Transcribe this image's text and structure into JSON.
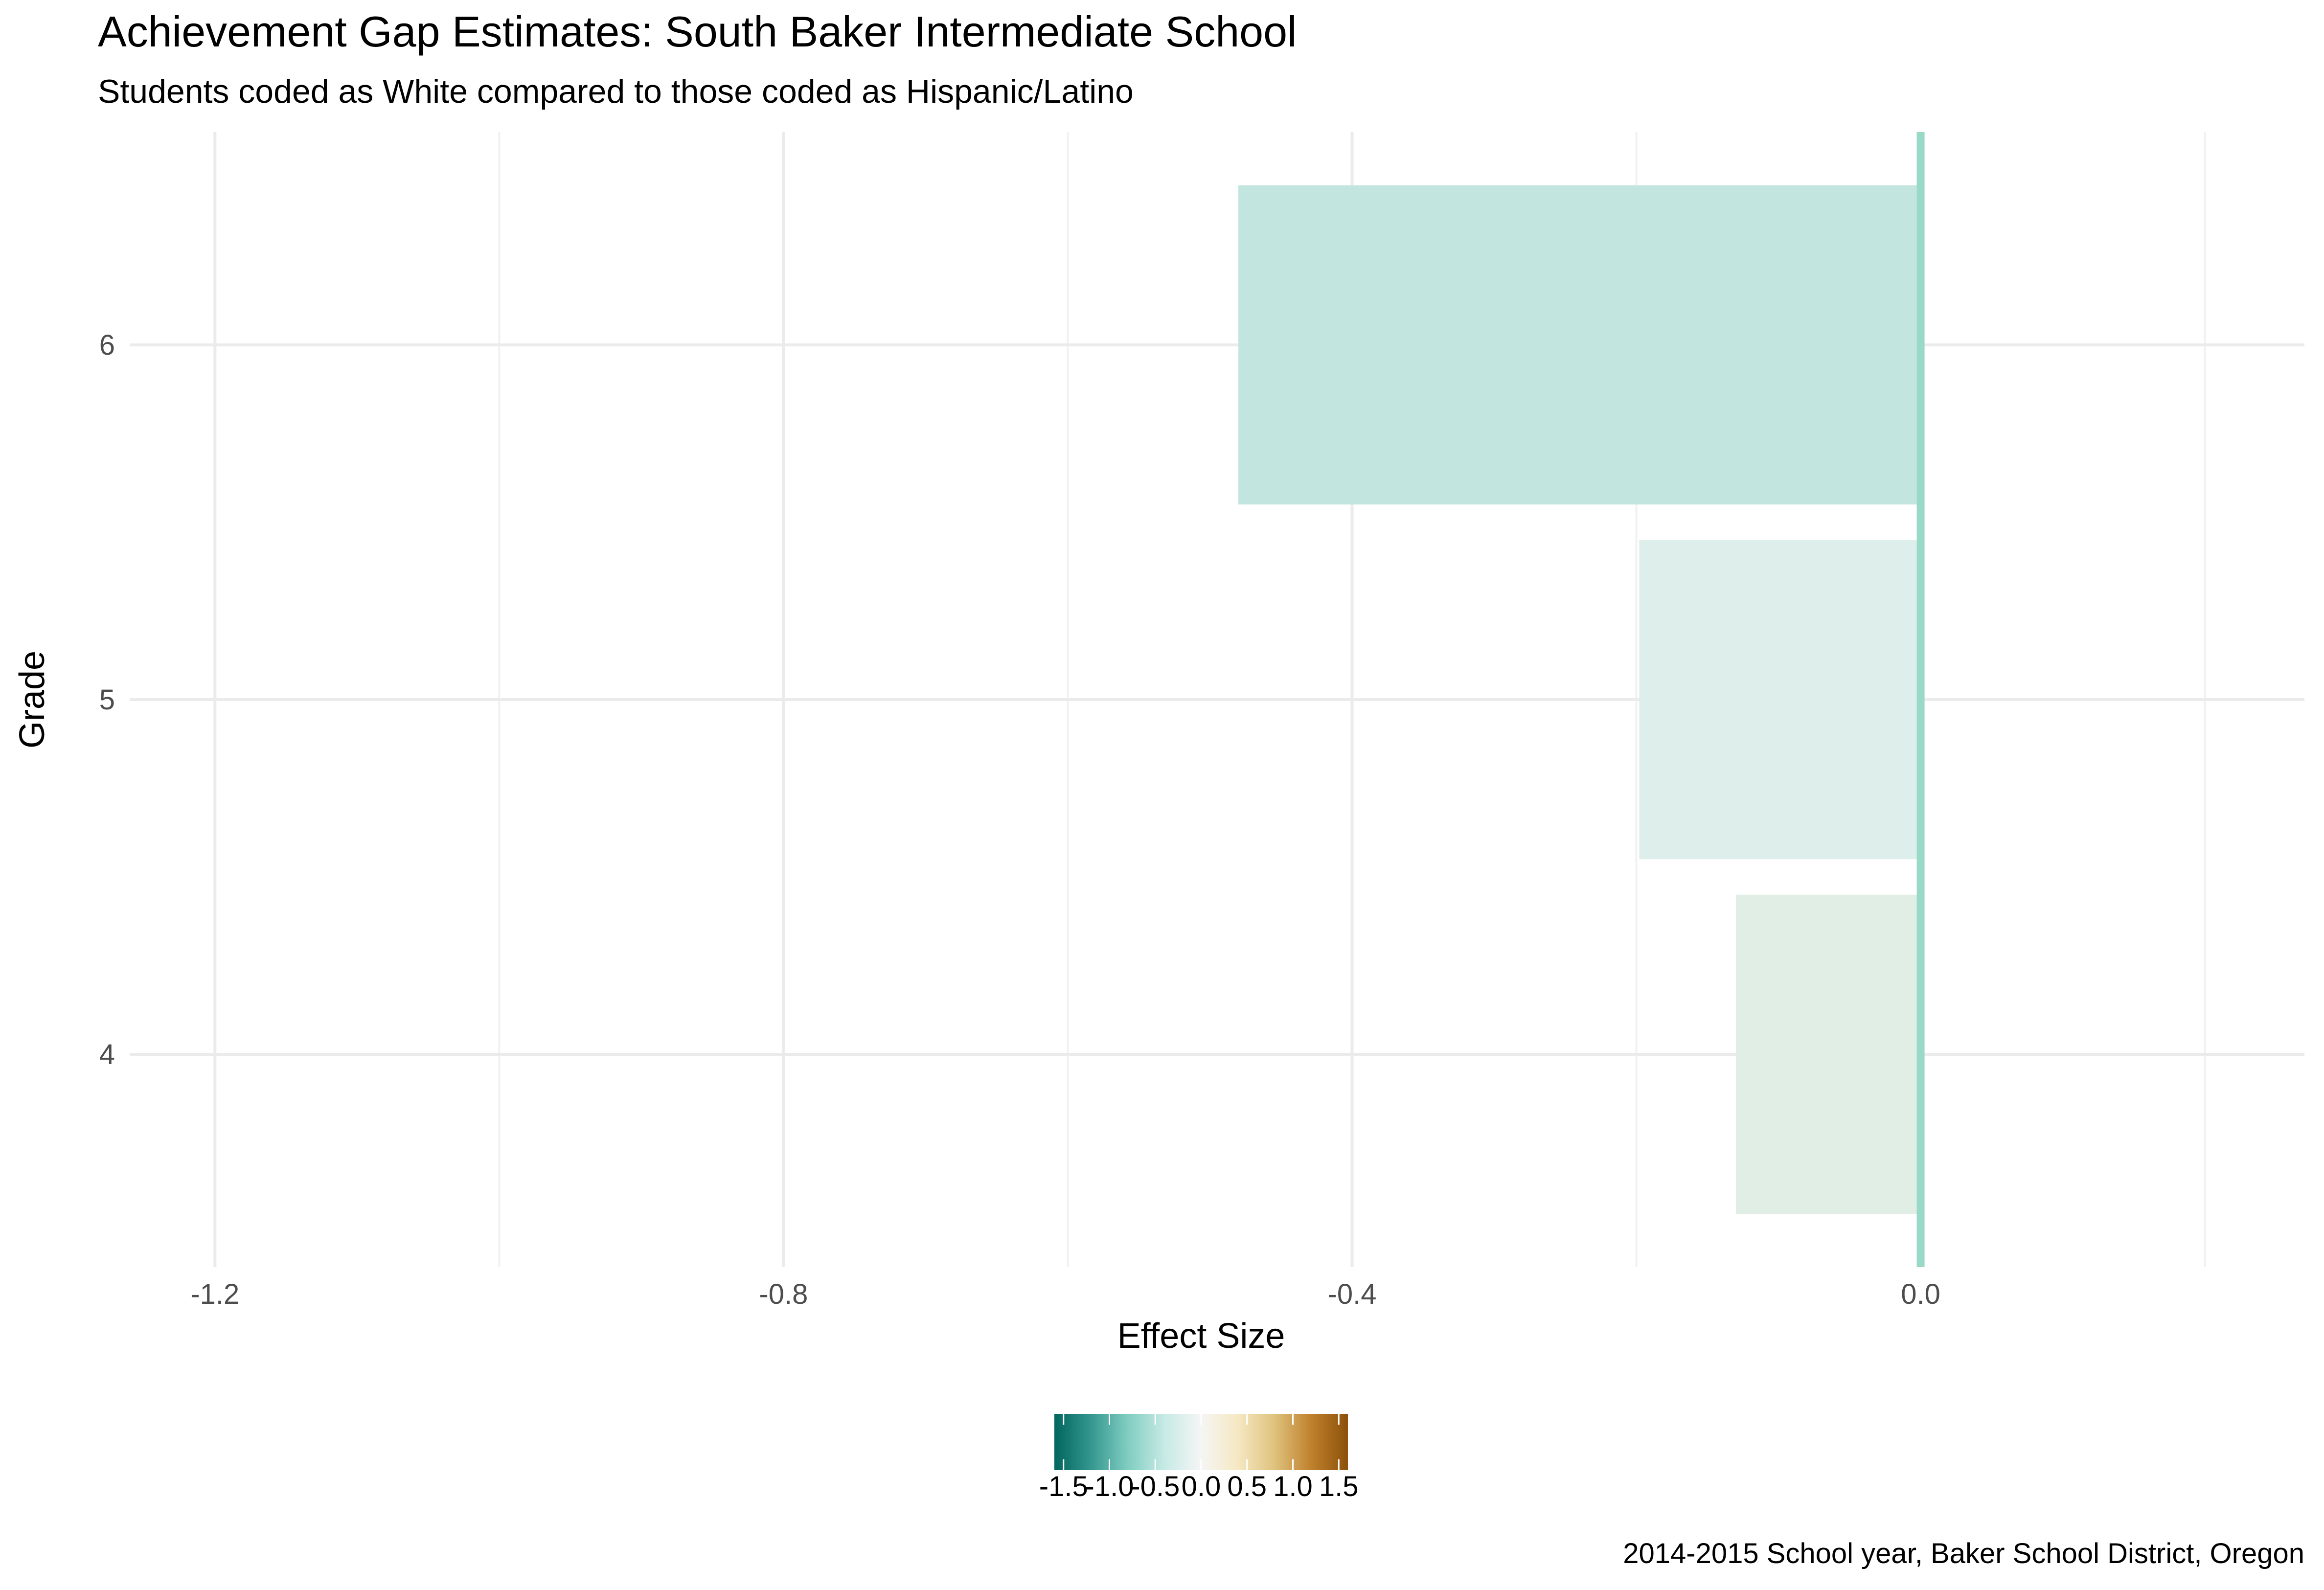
{
  "chart_data": {
    "type": "bar",
    "orientation": "horizontal",
    "title": "Achievement Gap Estimates: South Baker Intermediate School",
    "subtitle": "Students coded as White compared to those coded as Hispanic/Latino",
    "caption": "2014-2015 School year, Baker School District, Oregon",
    "xlabel": "Effect Size",
    "ylabel": "Grade",
    "categories": [
      "4",
      "5",
      "6"
    ],
    "values": [
      -0.13,
      -0.198,
      -0.48
    ],
    "bar_colors": [
      "#e1eee6",
      "#deefeb",
      "#c3e5df"
    ],
    "xlim": [
      -1.26,
      0.27
    ],
    "x_ticks": [
      -1.2,
      -0.8,
      -0.4,
      0.0
    ],
    "x_tick_labels": [
      "-1.2",
      "-0.8",
      "-0.4",
      "0.0"
    ],
    "x_minor_ticks": [
      -1.0,
      -0.6,
      -0.2,
      0.2
    ],
    "reference_line": {
      "x": 0.0,
      "color": "#9ad8c8"
    },
    "grid": true,
    "legend": {
      "type": "colorbar",
      "position": "bottom",
      "range": [
        -1.6,
        1.6
      ],
      "ticks": [
        -1.5,
        -1.0,
        -0.5,
        0.0,
        0.5,
        1.0,
        1.5
      ],
      "tick_labels": [
        "-1.5",
        "-1.0",
        "-0.5",
        "0.0",
        "0.5",
        "1.0",
        "1.5"
      ],
      "colors": [
        "#01665e",
        "#35978f",
        "#80cdc1",
        "#c7eae5",
        "#f5f5f5",
        "#f6e8c3",
        "#dfc27d",
        "#bf812d",
        "#8c510a"
      ]
    }
  }
}
